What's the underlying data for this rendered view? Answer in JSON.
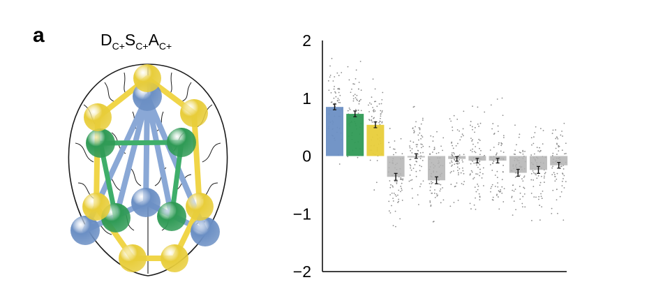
{
  "panel_label": "a",
  "brain_title": {
    "parts": [
      {
        "main": "D",
        "sub": "C+"
      },
      {
        "main": "S",
        "sub": "C+"
      },
      {
        "main": "A",
        "sub": "C+"
      }
    ]
  },
  "colors": {
    "blue": "#6b8fc4",
    "green": "#2f9a55",
    "yellow": "#e8cd3a",
    "gray": "#b3b3b3",
    "link_blue": "#8aa8d6",
    "link_green": "#3fae6a",
    "link_yellow": "#f0d548"
  },
  "chart_data": {
    "type": "bar",
    "ylim": [
      -2,
      2
    ],
    "yticks": [
      "2",
      "1",
      "0",
      "−1",
      "−2"
    ],
    "yticks_values": [
      2,
      1,
      0,
      -1,
      -2
    ],
    "values": [
      0.85,
      0.73,
      0.54,
      -0.36,
      0.0,
      -0.42,
      -0.05,
      -0.08,
      -0.08,
      -0.29,
      -0.24,
      -0.16
    ],
    "errors": [
      0.05,
      0.05,
      0.05,
      0.06,
      0.04,
      0.06,
      0.04,
      0.04,
      0.04,
      0.06,
      0.06,
      0.05
    ],
    "bar_colors": [
      "blue",
      "green",
      "yellow",
      "gray",
      "gray",
      "gray",
      "gray",
      "gray",
      "gray",
      "gray",
      "gray",
      "gray"
    ],
    "grid": false,
    "points_shown": "individual subject scatter per bar"
  }
}
